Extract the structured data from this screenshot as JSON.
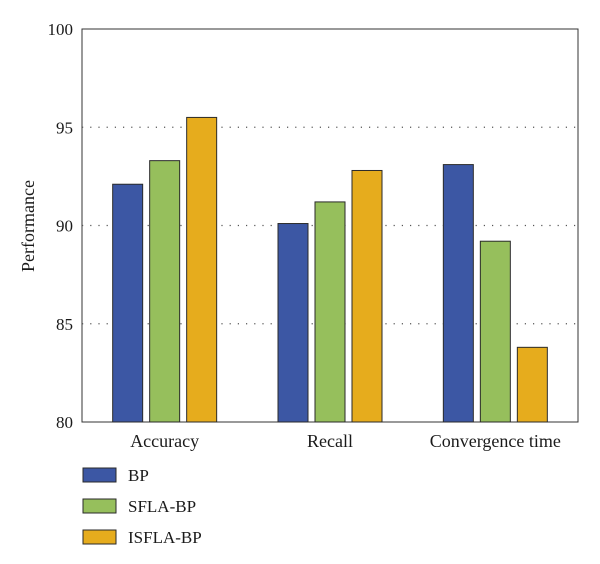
{
  "chart_data": {
    "type": "bar",
    "categories": [
      "Accuracy",
      "Recall",
      "Convergence time"
    ],
    "series": [
      {
        "name": "BP",
        "values": [
          92.1,
          90.1,
          93.1
        ]
      },
      {
        "name": "SFLA-BP",
        "values": [
          93.3,
          91.2,
          89.2
        ]
      },
      {
        "name": "ISFLA-BP",
        "values": [
          95.5,
          92.8,
          83.8
        ]
      }
    ],
    "title": "",
    "xlabel": "",
    "ylabel": "Performance",
    "ylim": [
      80,
      100
    ],
    "yticks": [
      "80",
      "85",
      "90",
      "95",
      "100"
    ],
    "grid": "horizontal dotted",
    "legend_position": "bottom-left",
    "colors": [
      "#3c57a4",
      "#96bf5c",
      "#e6ac1d"
    ]
  }
}
